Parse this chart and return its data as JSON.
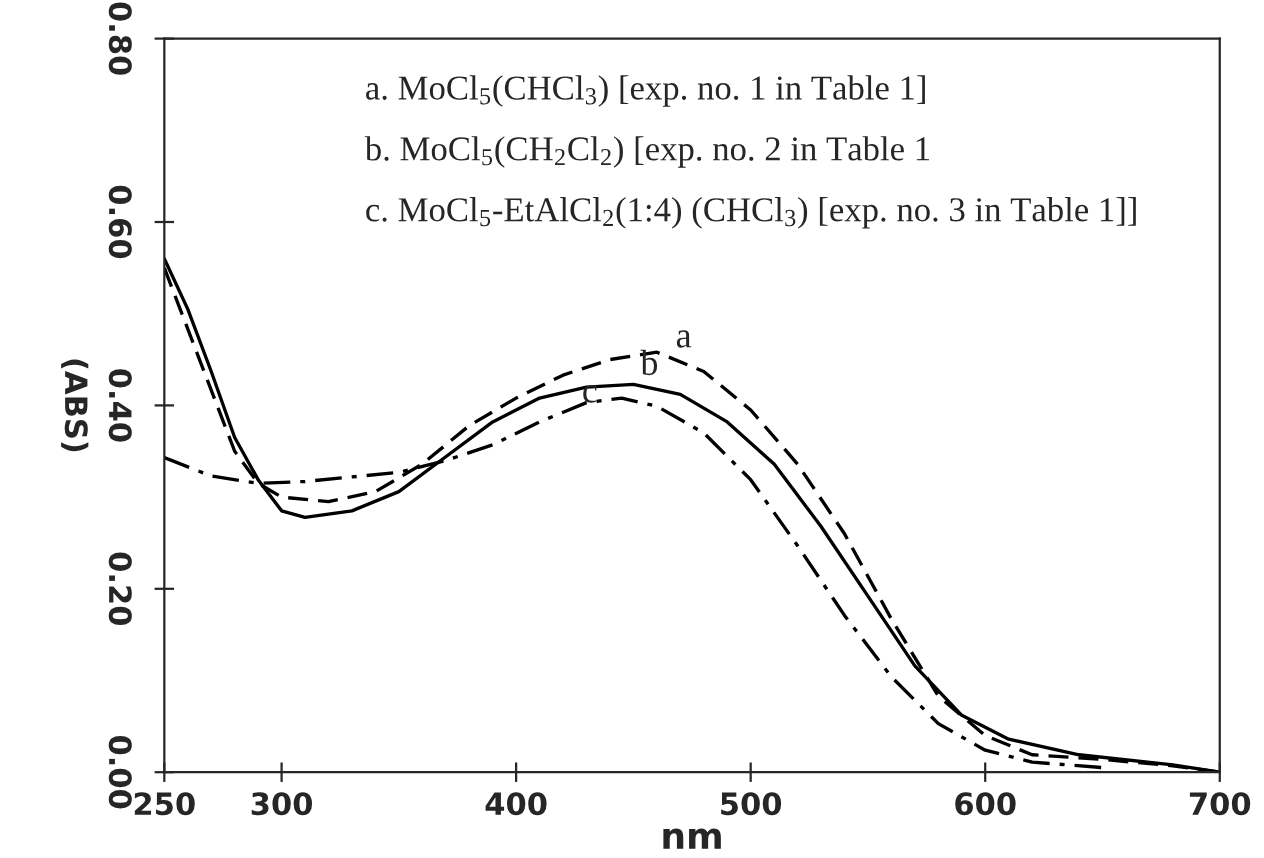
{
  "chart_data": {
    "type": "line",
    "xlabel": "nm",
    "ylabel": "(ABS)",
    "x": [
      250,
      265,
      280,
      290,
      300,
      320,
      340,
      360,
      380,
      400,
      420,
      440,
      460,
      480,
      500,
      520,
      540,
      560,
      580,
      600,
      620,
      650,
      680,
      700
    ],
    "series": [
      {
        "color": "#000000",
        "line_style": "dashed",
        "values": [
          0.55,
          0.45,
          0.35,
          0.315,
          0.3,
          0.295,
          0.306,
          0.336,
          0.378,
          0.408,
          0.433,
          0.45,
          0.458,
          0.437,
          0.395,
          0.336,
          0.26,
          0.167,
          0.083,
          0.04,
          0.019,
          0.014,
          0.007,
          0.0
        ]
      },
      {
        "color": "#000000",
        "line_style": "solid",
        "x": [
          250,
          260,
          270,
          280,
          290,
          300,
          310,
          330,
          350,
          370,
          390,
          410,
          430,
          450,
          470,
          490,
          510,
          530,
          550,
          570,
          590,
          610,
          640,
          680,
          700
        ],
        "values": [
          0.56,
          0.505,
          0.437,
          0.365,
          0.319,
          0.285,
          0.278,
          0.285,
          0.306,
          0.344,
          0.382,
          0.408,
          0.42,
          0.423,
          0.412,
          0.382,
          0.336,
          0.268,
          0.192,
          0.116,
          0.062,
          0.036,
          0.019,
          0.008,
          0.0
        ]
      },
      {
        "color": "#000000",
        "line_style": "dashdot",
        "x": [
          250,
          270,
          290,
          310,
          330,
          350,
          370,
          390,
          410,
          430,
          445,
          460,
          480,
          500,
          520,
          540,
          560,
          580,
          600,
          620,
          650
        ],
        "values": [
          0.343,
          0.323,
          0.315,
          0.317,
          0.322,
          0.327,
          0.34,
          0.357,
          0.382,
          0.403,
          0.408,
          0.399,
          0.37,
          0.319,
          0.247,
          0.171,
          0.104,
          0.053,
          0.024,
          0.011,
          0.005
        ]
      }
    ],
    "xlim": [
      250,
      700
    ],
    "ylim": [
      0,
      0.8
    ],
    "xticks": [
      250,
      300,
      400,
      500,
      600,
      700
    ],
    "yticks": [
      {
        "value": 0,
        "label": "0.00"
      },
      {
        "value": 0.2,
        "label": "0.20"
      },
      {
        "value": 0.4,
        "label": "0.40"
      },
      {
        "value": 0.6,
        "label": "0.60"
      },
      {
        "value": 0.8,
        "label": "0.80"
      }
    ],
    "grid": false,
    "legend": false,
    "annotations": [
      "a. MoCl$_{5}$(CHCl$_{3}$) [exp. no. 1 in Table 1]",
      "b. MoCl$_{5}$(CH$_{2}$Cl$_{2}$) [exp. no. 2 in Table 1",
      "c. MoCl$_{5}$-EtAlCl$_{2}$(1:4) (CHCl$_{3}$) [exp. no. 3 in Table 1]]",
      {
        "text": "a",
        "x": 468,
        "y": 0.455
      },
      {
        "text": "b",
        "x": 453,
        "y": 0.425
      },
      {
        "text": "c",
        "x": 428,
        "y": 0.395
      }
    ]
  }
}
